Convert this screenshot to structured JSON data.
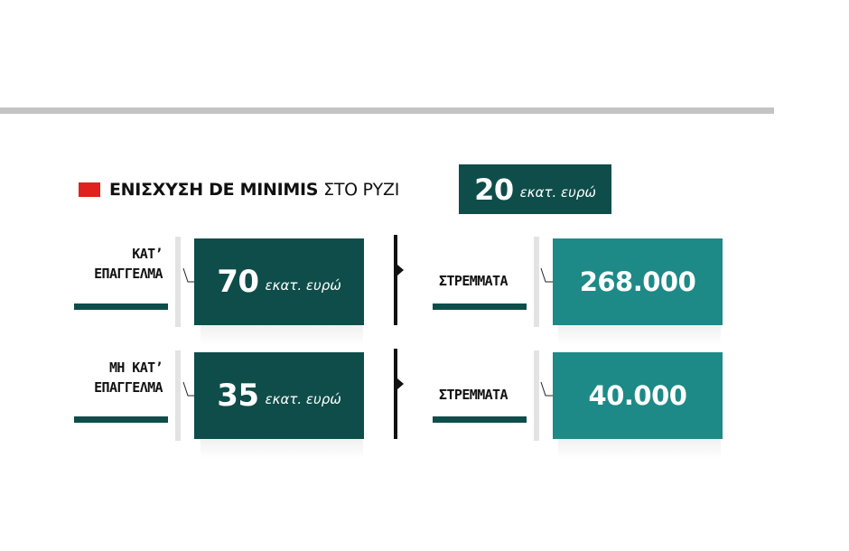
{
  "title": {
    "bold": "ΕΝΙΣΧΥΣΗ DE MINIMIS",
    "light": "ΣΤΟ ΡΥΖΙ"
  },
  "total": {
    "number": "20",
    "unit": "εκατ. ευρώ"
  },
  "rows": [
    {
      "label_line1": "ΚΑΤ’",
      "label_line2": "ΕΠΑΓΓΕΛΜΑ",
      "amount_number": "70",
      "amount_unit": "εκατ. ευρώ",
      "area_label": "ΣΤΡΕΜΜΑΤΑ",
      "area_value": "268.000"
    },
    {
      "label_line1": "ΜΗ ΚΑΤ’",
      "label_line2": "ΕΠΑΓΓΕΛΜΑ",
      "amount_number": "35",
      "amount_unit": "εκατ. ευρώ",
      "area_label": "ΣΤΡΕΜΜΑΤΑ",
      "area_value": "40.000"
    }
  ],
  "colors": {
    "dark_teal": "#0e4d4a",
    "teal": "#1d8a87",
    "red": "#e0211d",
    "rule_grey": "#c4c4c4"
  }
}
